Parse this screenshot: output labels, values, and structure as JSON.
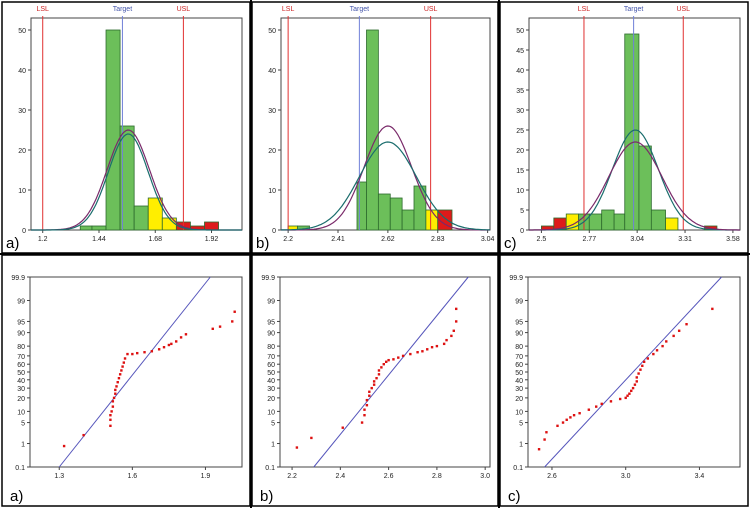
{
  "chart_data": [
    {
      "type": "bar",
      "panel_label": "a)",
      "spec_labels": {
        "lsl": "LSL",
        "target": "Target",
        "usl": "USL"
      },
      "spec_values": {
        "lsl": 1.2,
        "target": 1.54,
        "usl": 1.8
      },
      "xlim": [
        1.15,
        2.05
      ],
      "ylim": [
        0,
        53
      ],
      "xticks": [
        "1.2",
        "1.44",
        "1.68",
        "1.92"
      ],
      "yticks": [
        "0",
        "10",
        "20",
        "30",
        "40",
        "50"
      ],
      "bins": [
        {
          "x0": 1.36,
          "x1": 1.41,
          "value": 1,
          "color": "#6cbf5a"
        },
        {
          "x0": 1.41,
          "x1": 1.47,
          "value": 1,
          "color": "#6cbf5a"
        },
        {
          "x0": 1.47,
          "x1": 1.53,
          "value": 50,
          "color": "#6cbf5a"
        },
        {
          "x0": 1.53,
          "x1": 1.59,
          "value": 26,
          "color": "#6cbf5a"
        },
        {
          "x0": 1.59,
          "x1": 1.65,
          "value": 6,
          "color": "#6cbf5a"
        },
        {
          "x0": 1.65,
          "x1": 1.71,
          "value": 8,
          "color": "#ffee00"
        },
        {
          "x0": 1.71,
          "x1": 1.77,
          "value": 3,
          "color": "#ffee00"
        },
        {
          "x0": 1.77,
          "x1": 1.83,
          "value": 2,
          "color": "#dd1a1a"
        },
        {
          "x0": 1.83,
          "x1": 1.89,
          "value": 1,
          "color": "#dd1a1a"
        },
        {
          "x0": 1.89,
          "x1": 1.95,
          "value": 2,
          "color": "#dd1a1a"
        }
      ],
      "curves": [
        {
          "mean": 1.565,
          "sd": 0.09,
          "peak": 25,
          "color": "#7a2a6a"
        },
        {
          "mean": 1.565,
          "sd": 0.085,
          "peak": 24,
          "color": "#1a6d6d"
        }
      ]
    },
    {
      "type": "bar",
      "panel_label": "b)",
      "spec_labels": {
        "lsl": "LSL",
        "target": "Target",
        "usl": "USL"
      },
      "spec_values": {
        "lsl": 2.2,
        "target": 2.5,
        "usl": 2.8
      },
      "xlim": [
        2.17,
        3.05
      ],
      "ylim": [
        0,
        53
      ],
      "xticks": [
        "2.2",
        "2.41",
        "2.62",
        "2.83",
        "3.04"
      ],
      "yticks": [
        "0",
        "10",
        "20",
        "30",
        "40",
        "50"
      ],
      "bins": [
        {
          "x0": 2.2,
          "x1": 2.24,
          "value": 1,
          "color": "#ffee00"
        },
        {
          "x0": 2.24,
          "x1": 2.29,
          "value": 1,
          "color": "#6cbf5a"
        },
        {
          "x0": 2.29,
          "x1": 2.49,
          "value": 0,
          "color": "#6cbf5a"
        },
        {
          "x0": 2.49,
          "x1": 2.53,
          "value": 12,
          "color": "#6cbf5a"
        },
        {
          "x0": 2.53,
          "x1": 2.58,
          "value": 50,
          "color": "#6cbf5a"
        },
        {
          "x0": 2.58,
          "x1": 2.63,
          "value": 9,
          "color": "#6cbf5a"
        },
        {
          "x0": 2.63,
          "x1": 2.68,
          "value": 8,
          "color": "#6cbf5a"
        },
        {
          "x0": 2.68,
          "x1": 2.73,
          "value": 5,
          "color": "#6cbf5a"
        },
        {
          "x0": 2.73,
          "x1": 2.78,
          "value": 11,
          "color": "#6cbf5a"
        },
        {
          "x0": 2.78,
          "x1": 2.83,
          "value": 5,
          "color": "#ffee00"
        },
        {
          "x0": 2.83,
          "x1": 2.89,
          "value": 5,
          "color": "#dd1a1a"
        }
      ],
      "curves": [
        {
          "mean": 2.62,
          "sd": 0.1,
          "peak": 26,
          "color": "#7a2a6a"
        },
        {
          "mean": 2.62,
          "sd": 0.12,
          "peak": 22,
          "color": "#1a6d6d"
        }
      ]
    },
    {
      "type": "bar",
      "panel_label": "c)",
      "spec_labels": {
        "lsl": "LSL",
        "target": "Target",
        "usl": "USL"
      },
      "spec_values": {
        "lsl": 2.74,
        "target": 3.02,
        "usl": 3.3
      },
      "xlim": [
        2.43,
        3.62
      ],
      "ylim": [
        0,
        53
      ],
      "xticks": [
        "2.5",
        "2.77",
        "3.04",
        "3.31",
        "3.58"
      ],
      "yticks": [
        "0",
        "5",
        "10",
        "15",
        "20",
        "25",
        "30",
        "35",
        "40",
        "45",
        "50"
      ],
      "bins": [
        {
          "x0": 2.5,
          "x1": 2.57,
          "value": 1,
          "color": "#dd1a1a"
        },
        {
          "x0": 2.57,
          "x1": 2.64,
          "value": 3,
          "color": "#dd1a1a"
        },
        {
          "x0": 2.64,
          "x1": 2.71,
          "value": 4,
          "color": "#ffee00"
        },
        {
          "x0": 2.71,
          "x1": 2.77,
          "value": 4,
          "color": "#6cbf5a"
        },
        {
          "x0": 2.77,
          "x1": 2.84,
          "value": 4,
          "color": "#6cbf5a"
        },
        {
          "x0": 2.84,
          "x1": 2.91,
          "value": 5,
          "color": "#6cbf5a"
        },
        {
          "x0": 2.91,
          "x1": 2.97,
          "value": 4,
          "color": "#6cbf5a"
        },
        {
          "x0": 2.97,
          "x1": 3.05,
          "value": 49,
          "color": "#6cbf5a"
        },
        {
          "x0": 3.05,
          "x1": 3.12,
          "value": 21,
          "color": "#6cbf5a"
        },
        {
          "x0": 3.12,
          "x1": 3.2,
          "value": 5,
          "color": "#6cbf5a"
        },
        {
          "x0": 3.2,
          "x1": 3.27,
          "value": 3,
          "color": "#ffee00"
        },
        {
          "x0": 3.27,
          "x1": 3.34,
          "value": 0,
          "color": "#6cbf5a"
        },
        {
          "x0": 3.42,
          "x1": 3.49,
          "value": 1,
          "color": "#dd1a1a"
        }
      ],
      "curves": [
        {
          "mean": 3.03,
          "sd": 0.13,
          "peak": 25,
          "color": "#1a6d6d"
        },
        {
          "mean": 3.03,
          "sd": 0.15,
          "peak": 22,
          "color": "#7a2a6a"
        }
      ]
    },
    {
      "type": "scatter",
      "panel_label": "a)",
      "xlim": [
        1.18,
        2.05
      ],
      "xticks": [
        "1.3",
        "1.6",
        "1.9"
      ],
      "yticks": [
        "0.1",
        "1",
        "5",
        "10",
        "20",
        "30",
        "40",
        "50",
        "60",
        "70",
        "80",
        "90",
        "95",
        "99",
        "99.9"
      ],
      "fit_line": {
        "x": [
          1.3,
          1.92
        ],
        "p": [
          0.1,
          99.9
        ]
      },
      "points": {
        "x": [
          1.32,
          1.4,
          1.51,
          1.51,
          1.51,
          1.515,
          1.52,
          1.52,
          1.525,
          1.53,
          1.53,
          1.535,
          1.54,
          1.545,
          1.55,
          1.555,
          1.56,
          1.565,
          1.57,
          1.58,
          1.6,
          1.62,
          1.65,
          1.68,
          1.71,
          1.73,
          1.75,
          1.76,
          1.78,
          1.8,
          1.82,
          1.93,
          1.96,
          2.01,
          2.02
        ],
        "p": [
          0.8,
          2,
          4,
          6,
          8,
          10,
          13,
          17,
          20,
          24,
          28,
          32,
          37,
          42,
          47,
          52,
          57,
          62,
          67,
          72,
          72,
          73,
          74,
          75,
          77,
          79,
          81,
          82,
          84,
          87,
          89,
          92,
          93,
          95,
          97.5
        ]
      }
    },
    {
      "type": "scatter",
      "panel_label": "b)",
      "xlim": [
        2.15,
        3.02
      ],
      "xticks": [
        "2.2",
        "2.4",
        "2.6",
        "2.8",
        "3.0"
      ],
      "yticks": [
        "0.1",
        "1",
        "5",
        "10",
        "20",
        "30",
        "40",
        "50",
        "60",
        "70",
        "80",
        "90",
        "95",
        "99",
        "99.9"
      ],
      "fit_line": {
        "x": [
          2.29,
          2.93
        ],
        "p": [
          0.1,
          99.9
        ]
      },
      "points": {
        "x": [
          2.22,
          2.28,
          2.41,
          2.49,
          2.5,
          2.5,
          2.51,
          2.51,
          2.52,
          2.52,
          2.53,
          2.54,
          2.54,
          2.55,
          2.56,
          2.56,
          2.57,
          2.58,
          2.59,
          2.6,
          2.62,
          2.64,
          2.66,
          2.69,
          2.72,
          2.74,
          2.76,
          2.78,
          2.8,
          2.83,
          2.84,
          2.86,
          2.87,
          2.88,
          2.88
        ],
        "p": [
          0.7,
          1.6,
          3.5,
          5,
          8,
          11,
          14,
          18,
          22,
          26,
          30,
          34,
          38,
          42,
          47,
          52,
          56,
          60,
          63,
          65,
          66,
          68,
          70,
          72,
          74,
          75,
          77,
          79,
          80,
          82,
          85,
          88,
          91,
          95,
          98
        ]
      }
    },
    {
      "type": "scatter",
      "panel_label": "c)",
      "xlim": [
        2.47,
        3.62
      ],
      "xticks": [
        "2.6",
        "3.0",
        "3.4"
      ],
      "yticks": [
        "0.1",
        "1",
        "5",
        "10",
        "20",
        "30",
        "40",
        "50",
        "60",
        "70",
        "80",
        "90",
        "95",
        "99",
        "99.9"
      ],
      "fit_line": {
        "x": [
          2.56,
          3.52
        ],
        "p": [
          0.1,
          99.9
        ]
      },
      "points": {
        "x": [
          2.53,
          2.56,
          2.57,
          2.63,
          2.66,
          2.68,
          2.7,
          2.72,
          2.75,
          2.8,
          2.84,
          2.87,
          2.92,
          2.97,
          3.0,
          3.01,
          3.02,
          3.03,
          3.04,
          3.05,
          3.06,
          3.06,
          3.07,
          3.08,
          3.09,
          3.1,
          3.12,
          3.15,
          3.17,
          3.2,
          3.22,
          3.26,
          3.29,
          3.33,
          3.47
        ],
        "p": [
          0.6,
          1.4,
          2.5,
          4,
          5,
          6,
          7,
          8,
          9,
          11,
          13,
          15,
          17,
          19,
          20,
          22,
          24,
          27,
          30,
          34,
          38,
          43,
          48,
          53,
          58,
          63,
          67,
          72,
          76,
          80,
          84,
          88,
          91,
          94,
          98
        ]
      }
    }
  ]
}
